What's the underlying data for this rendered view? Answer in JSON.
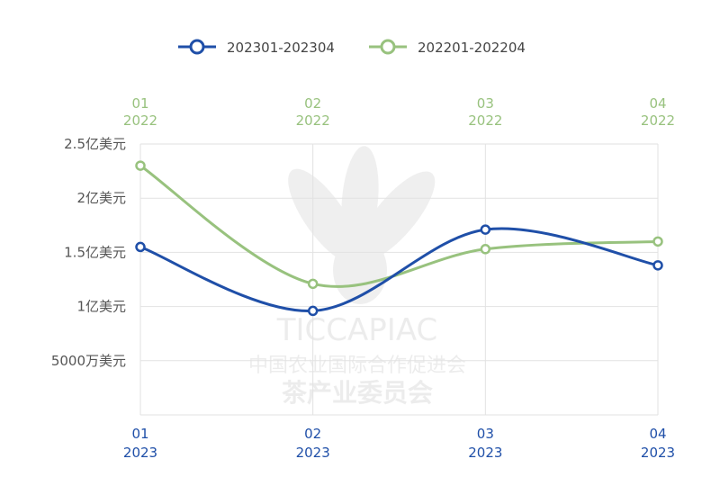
{
  "chart_data": {
    "type": "line",
    "title": "",
    "xlabel": "",
    "ylabel": "",
    "ylim": [
      0,
      2.5
    ],
    "y_ticks": [
      {
        "value": 0.5,
        "label": "5000万美元"
      },
      {
        "value": 1.0,
        "label": "1亿美元"
      },
      {
        "value": 1.5,
        "label": "1.5亿美元"
      },
      {
        "value": 2.0,
        "label": "2亿美元"
      },
      {
        "value": 2.5,
        "label": "2.5亿美元"
      }
    ],
    "x_bottom": [
      {
        "month": "01",
        "year": "2023"
      },
      {
        "month": "02",
        "year": "2023"
      },
      {
        "month": "03",
        "year": "2023"
      },
      {
        "month": "04",
        "year": "2023"
      }
    ],
    "x_top": [
      {
        "month": "01",
        "year": "2022"
      },
      {
        "month": "02",
        "year": "2022"
      },
      {
        "month": "03",
        "year": "2022"
      },
      {
        "month": "04",
        "year": "2022"
      }
    ],
    "grid": true,
    "legend_position": "top-center",
    "series": [
      {
        "name": "202301-202304",
        "color": "#1f4fa8",
        "axis": "bottom",
        "values": [
          1.55,
          0.96,
          1.71,
          1.38
        ]
      },
      {
        "name": "202201-202204",
        "color": "#98c27e",
        "axis": "top",
        "values": [
          2.3,
          1.21,
          1.53,
          1.6
        ]
      }
    ]
  },
  "watermark": {
    "latin": "TICCAPIAC",
    "line1": "中国农业国际合作促进会",
    "line2": "茶产业委员会"
  }
}
